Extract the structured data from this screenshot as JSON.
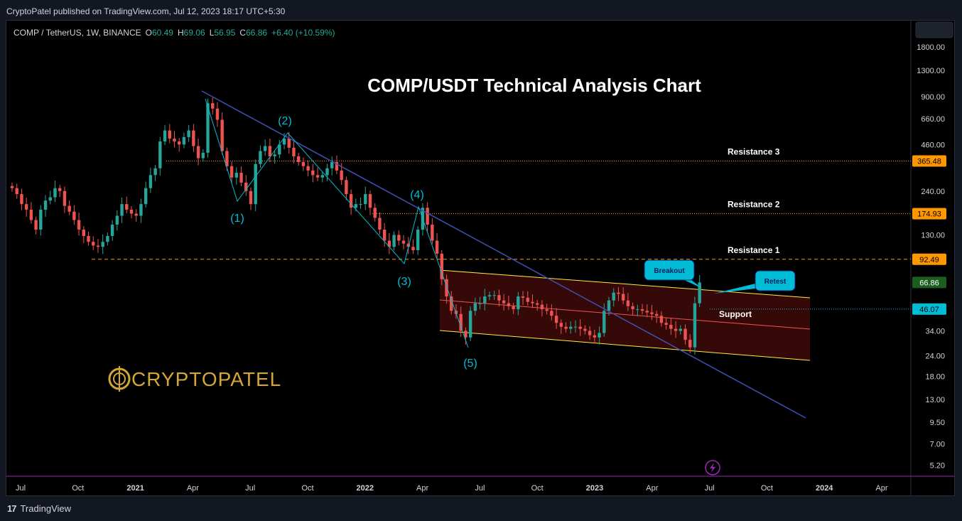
{
  "publish_line": "CryptoPatel published on TradingView.com, Jul 12, 2023 18:17 UTC+5:30",
  "footer_brand": "TradingView",
  "footer_logo_mark": "17",
  "legend": {
    "symbol": "COMP / TetherUS, 1W, BINANCE",
    "o_key": "O",
    "o": "60.49",
    "h_key": "H",
    "h": "69.06",
    "l_key": "L",
    "l": "56.95",
    "c_key": "C",
    "c": "66.86",
    "change": "+6.40 (+10.59%)"
  },
  "watermark": "CRYPTOPATEL",
  "colors": {
    "up": "#26a69a",
    "down": "#ef5350",
    "accent": "#2962ff",
    "orange": "#ff9800",
    "wave": "#00bcd4"
  },
  "chart_data": {
    "type": "candlestick",
    "title": "COMP/USDT Technical Analysis Chart",
    "y_scale": "log",
    "ylim": [
      4.5,
      2600
    ],
    "y_ticks": [
      "1800.00",
      "1300.00",
      "900.00",
      "660.00",
      "460.00",
      "240.00",
      "130.00",
      "34.00",
      "24.00",
      "18.00",
      "13.00",
      "9.50",
      "7.00",
      "5.20"
    ],
    "x_ticks": [
      "Jul",
      "Oct",
      "2021",
      "Apr",
      "Jul",
      "Oct",
      "2022",
      "Apr",
      "Jul",
      "Oct",
      "2023",
      "Apr",
      "Jul",
      "Oct",
      "2024",
      "Apr"
    ],
    "x_ticks_bold": [
      "2021",
      "2022",
      "2023",
      "2024"
    ],
    "price_labels": [
      {
        "label": "Resistance 3",
        "value": 365.48,
        "text": "365.48",
        "color": "#ff9800"
      },
      {
        "label": "Resistance 2",
        "value": 174.93,
        "text": "174.93",
        "color": "#ff9800"
      },
      {
        "label": "Resistance 1",
        "value": 92.49,
        "text": "92.49",
        "color": "#ff9800"
      },
      {
        "label": "",
        "value": 66.86,
        "text": "66.86",
        "color": "#1b5e20"
      },
      {
        "label": "Support",
        "value": 46.07,
        "text": "46.07",
        "color": "#00bcd4"
      }
    ],
    "wave_labels": [
      "(1)",
      "(2)",
      "(3)",
      "(4)",
      "(5)"
    ],
    "callouts": [
      "Breakout",
      "Retest"
    ],
    "closes": [
      250,
      230,
      200,
      185,
      160,
      140,
      185,
      210,
      220,
      250,
      240,
      195,
      180,
      160,
      140,
      128,
      118,
      112,
      110,
      118,
      128,
      150,
      170,
      200,
      185,
      175,
      170,
      200,
      250,
      300,
      330,
      480,
      560,
      500,
      480,
      460,
      510,
      560,
      450,
      380,
      410,
      820,
      760,
      650,
      420,
      340,
      290,
      310,
      270,
      240,
      200,
      350,
      420,
      450,
      390,
      400,
      460,
      500,
      440,
      390,
      360,
      340,
      320,
      300,
      290,
      300,
      330,
      360,
      320,
      280,
      230,
      190,
      200,
      200,
      230,
      190,
      165,
      140,
      120,
      110,
      130,
      120,
      115,
      110,
      105,
      140,
      190,
      150,
      120,
      100,
      70,
      55,
      45,
      43,
      34,
      31,
      45,
      50,
      50,
      55,
      56,
      56,
      52,
      50,
      48,
      46,
      55,
      54,
      51,
      50,
      49,
      46,
      45,
      42,
      38,
      36,
      35,
      36,
      36,
      35,
      34,
      32,
      31,
      33,
      45,
      52,
      58,
      57,
      52,
      48,
      46,
      46,
      45,
      44,
      43,
      42,
      38,
      37,
      35,
      34,
      35,
      30,
      27,
      50,
      66.86
    ]
  }
}
